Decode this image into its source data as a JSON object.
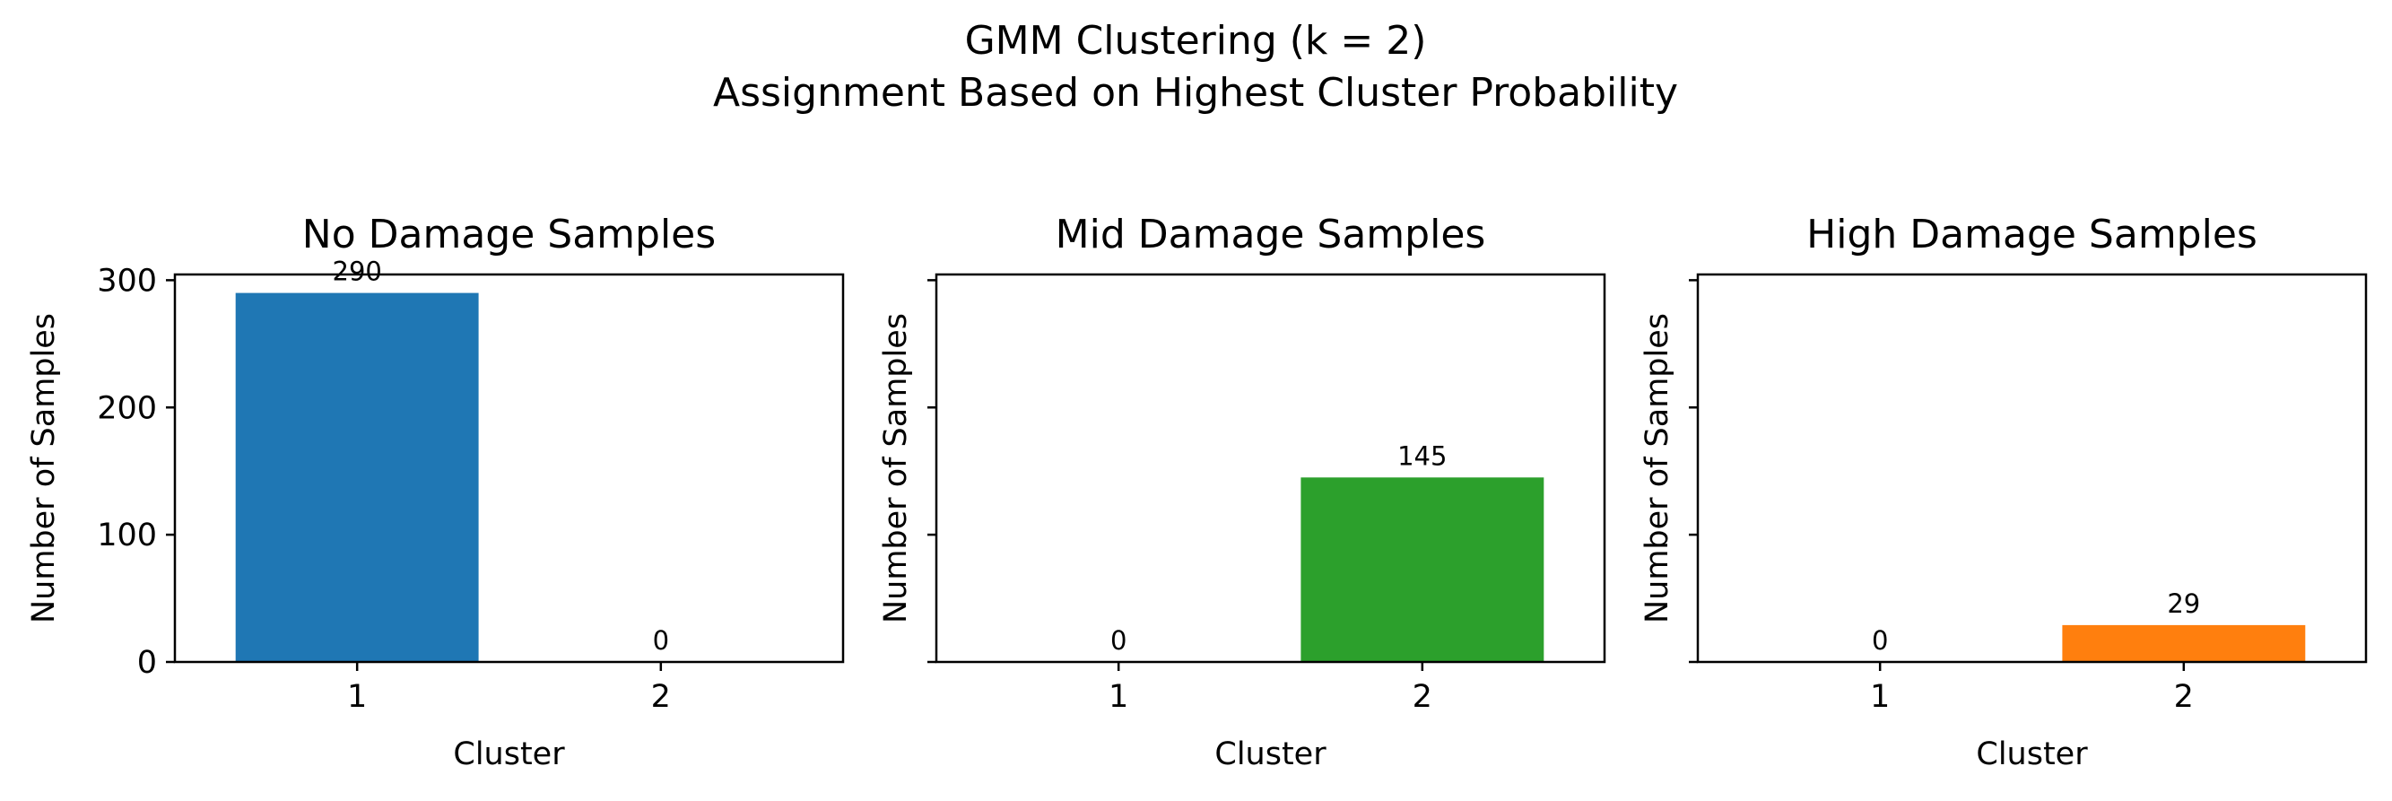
{
  "figure": {
    "title_line1": "GMM Clustering (k = 2)",
    "title_line2": "Assignment Based on Highest Cluster Probability"
  },
  "chart_data": [
    {
      "type": "bar",
      "title": "No Damage Samples",
      "xlabel": "Cluster",
      "ylabel": "Number of Samples",
      "categories": [
        "1",
        "2"
      ],
      "values": [
        290,
        0
      ],
      "bar_labels": [
        "290",
        "0"
      ],
      "color": "#1f77b4",
      "ylim": [
        0,
        304.5
      ],
      "yticks": [
        0,
        100,
        200,
        300
      ],
      "ytick_labels": [
        "0",
        "100",
        "200",
        "300"
      ],
      "grid": false,
      "legend": false
    },
    {
      "type": "bar",
      "title": "Mid Damage Samples",
      "xlabel": "Cluster",
      "ylabel": "Number of Samples",
      "categories": [
        "1",
        "2"
      ],
      "values": [
        0,
        145
      ],
      "bar_labels": [
        "0",
        "145"
      ],
      "color": "#2ca02c",
      "ylim": [
        0,
        304.5
      ],
      "yticks": [
        0,
        100,
        200,
        300
      ],
      "ytick_labels": [],
      "grid": false,
      "legend": false
    },
    {
      "type": "bar",
      "title": "High Damage Samples",
      "xlabel": "Cluster",
      "ylabel": "Number of Samples",
      "categories": [
        "1",
        "2"
      ],
      "values": [
        0,
        29
      ],
      "bar_labels": [
        "0",
        "29"
      ],
      "color": "#ff7f0e",
      "ylim": [
        0,
        304.5
      ],
      "yticks": [
        0,
        100,
        200,
        300
      ],
      "ytick_labels": [],
      "grid": false,
      "legend": false
    }
  ]
}
